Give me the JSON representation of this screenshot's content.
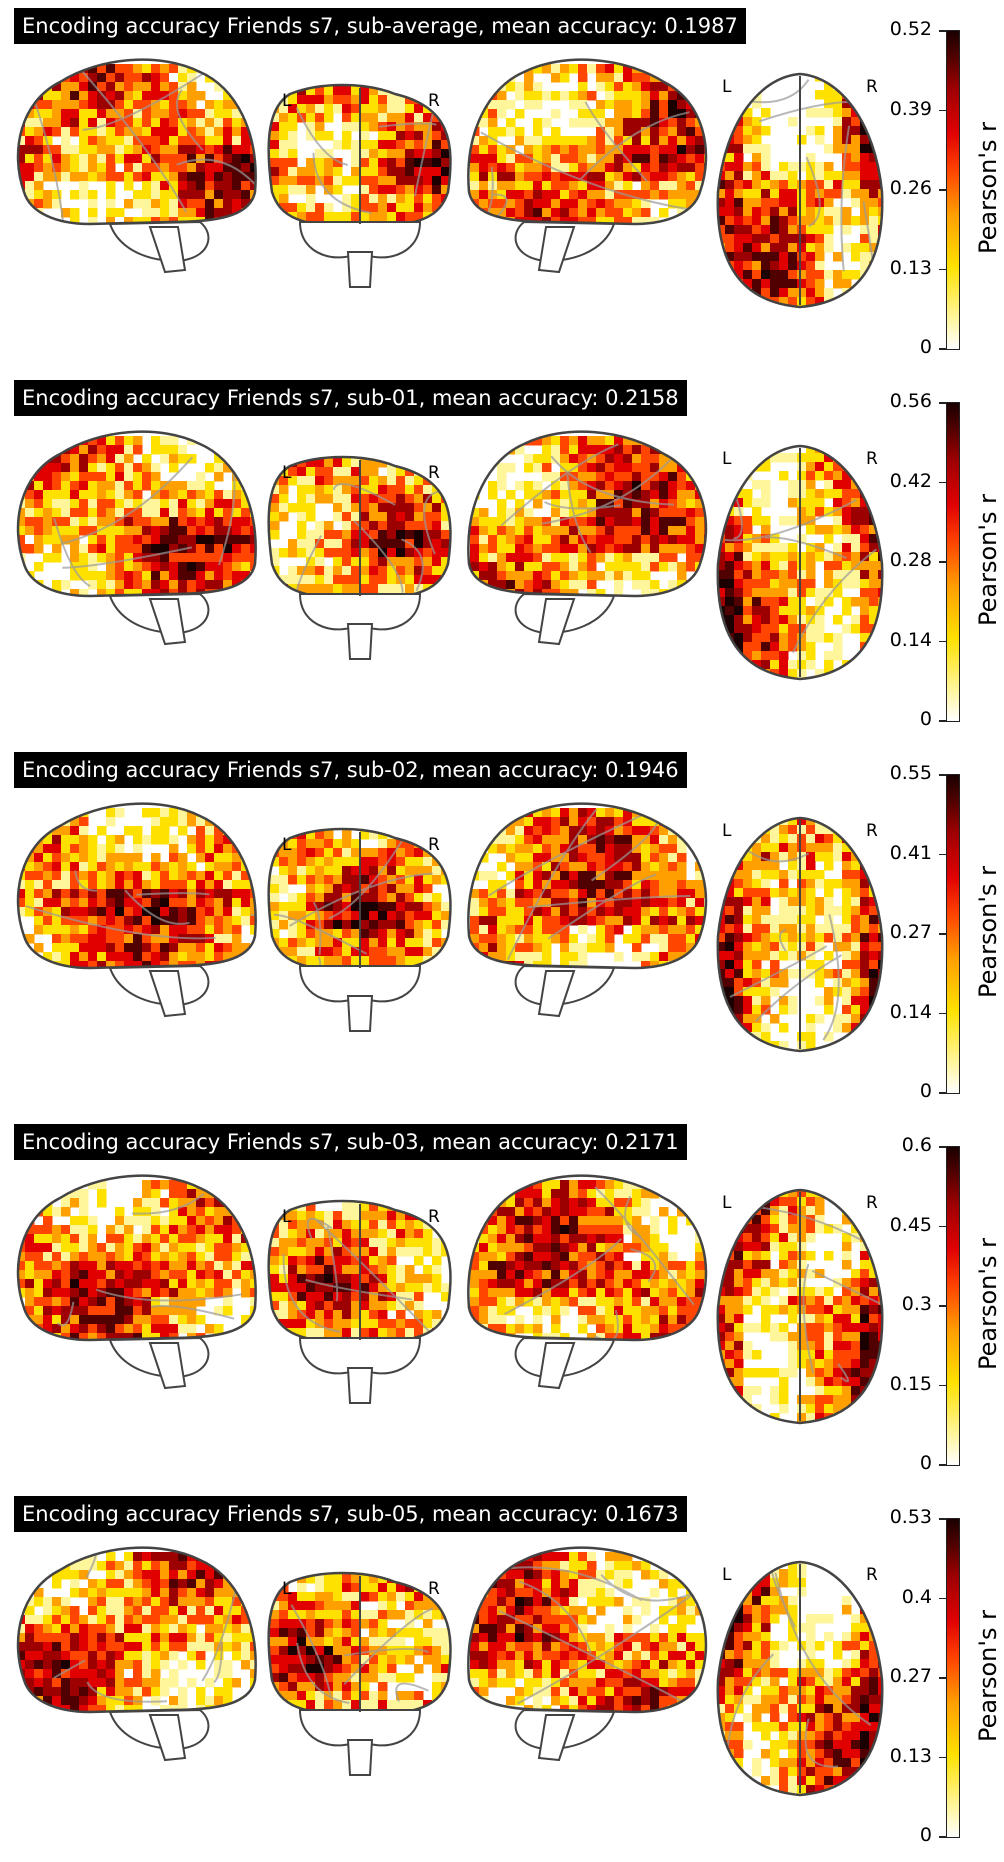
{
  "panels": [
    {
      "title": "Encoding accuracy Friends s7, sub-average, mean accuracy: 0.1987",
      "cbar_ticks": [
        "0.52",
        "0.39",
        "0.26",
        "0.13",
        "0"
      ],
      "cbar_label": "Pearson's r",
      "left_marker": "L",
      "right_marker": "R"
    },
    {
      "title": "Encoding accuracy Friends s7, sub-01, mean accuracy: 0.2158",
      "cbar_ticks": [
        "0.56",
        "0.42",
        "0.28",
        "0.14",
        "0"
      ],
      "cbar_label": "Pearson's r",
      "left_marker": "L",
      "right_marker": "R"
    },
    {
      "title": "Encoding accuracy Friends s7, sub-02, mean accuracy: 0.1946",
      "cbar_ticks": [
        "0.55",
        "0.41",
        "0.27",
        "0.14",
        "0"
      ],
      "cbar_label": "Pearson's r",
      "left_marker": "L",
      "right_marker": "R"
    },
    {
      "title": "Encoding accuracy Friends s7, sub-03, mean accuracy: 0.2171",
      "cbar_ticks": [
        "0.6",
        "0.45",
        "0.3",
        "0.15",
        "0"
      ],
      "cbar_label": "Pearson's r",
      "left_marker": "L",
      "right_marker": "R"
    },
    {
      "title": "Encoding accuracy Friends s7, sub-05, mean accuracy: 0.1673",
      "cbar_ticks": [
        "0.53",
        "0.4",
        "0.27",
        "0.13",
        "0"
      ],
      "cbar_label": "Pearson's r",
      "left_marker": "L",
      "right_marker": "R"
    }
  ],
  "colormap": [
    "#ffffff",
    "#fff59a",
    "#ffe100",
    "#ffa000",
    "#ff4500",
    "#e00000",
    "#9d0000",
    "#500000",
    "#1a0000"
  ],
  "outline_color": "#444444"
}
